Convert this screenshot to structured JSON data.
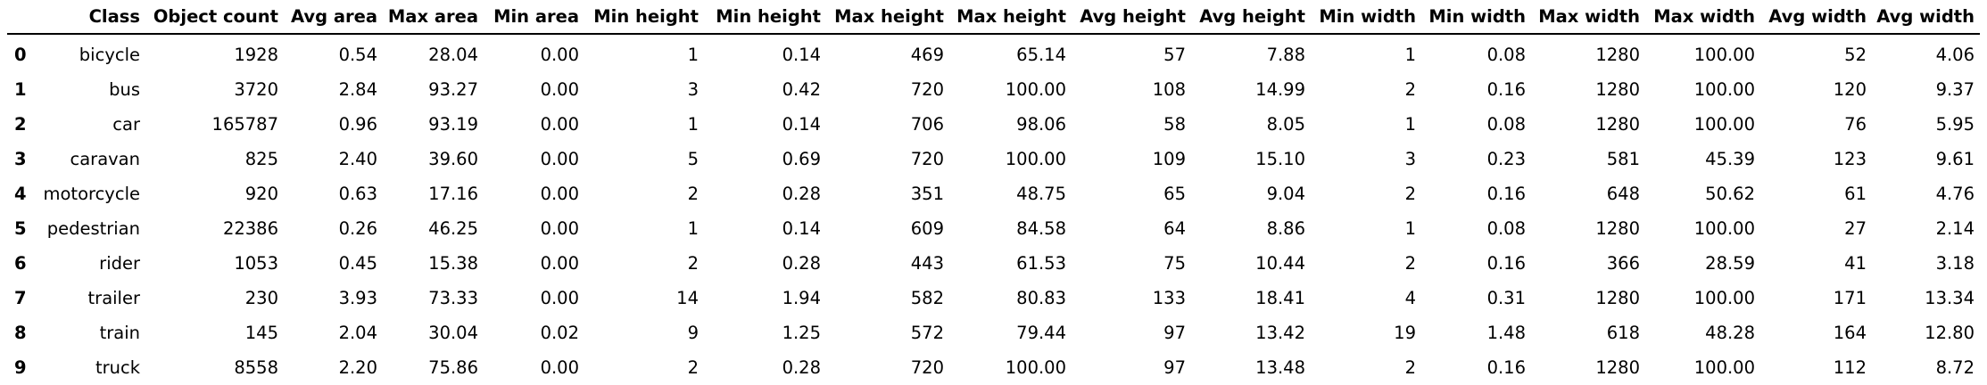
{
  "chart_data": {
    "type": "table",
    "columns": [
      "",
      "Class",
      "Object count",
      "Avg area",
      "Max area",
      "Min area",
      "Min height",
      "Min height",
      "Max height",
      "Max height",
      "Avg height",
      "Avg height",
      "Min width",
      "Min width",
      "Max width",
      "Max width",
      "Avg width",
      "Avg width"
    ],
    "rows": [
      [
        "0",
        "bicycle",
        "1928",
        "0.54",
        "28.04",
        "0.00",
        "1",
        "0.14",
        "469",
        "65.14",
        "57",
        "7.88",
        "1",
        "0.08",
        "1280",
        "100.00",
        "52",
        "4.06"
      ],
      [
        "1",
        "bus",
        "3720",
        "2.84",
        "93.27",
        "0.00",
        "3",
        "0.42",
        "720",
        "100.00",
        "108",
        "14.99",
        "2",
        "0.16",
        "1280",
        "100.00",
        "120",
        "9.37"
      ],
      [
        "2",
        "car",
        "165787",
        "0.96",
        "93.19",
        "0.00",
        "1",
        "0.14",
        "706",
        "98.06",
        "58",
        "8.05",
        "1",
        "0.08",
        "1280",
        "100.00",
        "76",
        "5.95"
      ],
      [
        "3",
        "caravan",
        "825",
        "2.40",
        "39.60",
        "0.00",
        "5",
        "0.69",
        "720",
        "100.00",
        "109",
        "15.10",
        "3",
        "0.23",
        "581",
        "45.39",
        "123",
        "9.61"
      ],
      [
        "4",
        "motorcycle",
        "920",
        "0.63",
        "17.16",
        "0.00",
        "2",
        "0.28",
        "351",
        "48.75",
        "65",
        "9.04",
        "2",
        "0.16",
        "648",
        "50.62",
        "61",
        "4.76"
      ],
      [
        "5",
        "pedestrian",
        "22386",
        "0.26",
        "46.25",
        "0.00",
        "1",
        "0.14",
        "609",
        "84.58",
        "64",
        "8.86",
        "1",
        "0.08",
        "1280",
        "100.00",
        "27",
        "2.14"
      ],
      [
        "6",
        "rider",
        "1053",
        "0.45",
        "15.38",
        "0.00",
        "2",
        "0.28",
        "443",
        "61.53",
        "75",
        "10.44",
        "2",
        "0.16",
        "366",
        "28.59",
        "41",
        "3.18"
      ],
      [
        "7",
        "trailer",
        "230",
        "3.93",
        "73.33",
        "0.00",
        "14",
        "1.94",
        "582",
        "80.83",
        "133",
        "18.41",
        "4",
        "0.31",
        "1280",
        "100.00",
        "171",
        "13.34"
      ],
      [
        "8",
        "train",
        "145",
        "2.04",
        "30.04",
        "0.02",
        "9",
        "1.25",
        "572",
        "79.44",
        "97",
        "13.42",
        "19",
        "1.48",
        "618",
        "48.28",
        "164",
        "12.80"
      ],
      [
        "9",
        "truck",
        "8558",
        "2.20",
        "75.86",
        "0.00",
        "2",
        "0.28",
        "720",
        "100.00",
        "97",
        "13.48",
        "2",
        "0.16",
        "1280",
        "100.00",
        "112",
        "8.72"
      ]
    ]
  }
}
